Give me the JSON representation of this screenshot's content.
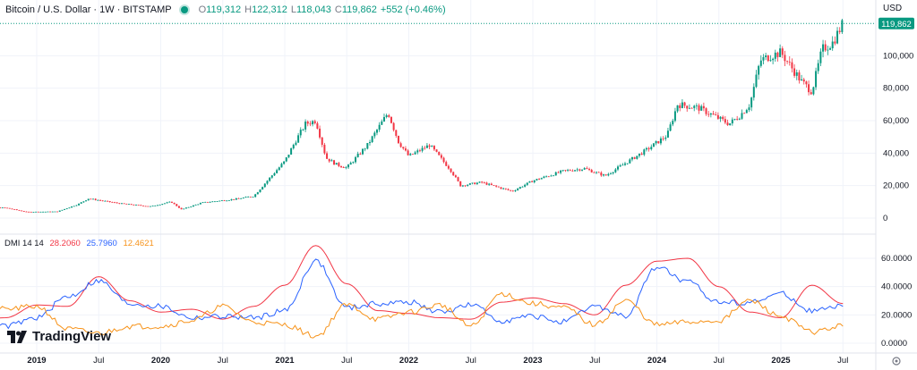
{
  "header": {
    "symbol": "Bitcoin / U.S. Dollar · 1W · BITSTAMP",
    "o_label": "O",
    "o": "119,312",
    "h_label": "H",
    "h": "122,312",
    "l_label": "L",
    "l": "118,043",
    "c_label": "C",
    "c": "119,862",
    "change": "+552 (+0.46%)"
  },
  "currency": "USD",
  "last_price_label": "119,862",
  "dmi_legend": {
    "name": "DMI 14 14",
    "di_plus": "28.2060",
    "di_minus": "25.7960",
    "adx": "12.4621"
  },
  "brand": "TradingView",
  "colors": {
    "up": "#089981",
    "down": "#f23645",
    "di_plus": "#f23645",
    "di_minus": "#2962ff",
    "adx": "#f7931a",
    "grid": "#f0f3fa",
    "axis_text": "#131722"
  },
  "chart_data": [
    {
      "type": "candlestick",
      "title": "Bitcoin / U.S. Dollar · 1W · BITSTAMP",
      "x_axis": [
        "2019",
        "Jul",
        "2020",
        "Jul",
        "2021",
        "Jul",
        "2022",
        "Jul",
        "2023",
        "Jul",
        "2024",
        "Jul",
        "2025",
        "Jul"
      ],
      "y_ticks": [
        "0",
        "20,000",
        "40,000",
        "60,000",
        "80,000",
        "100,000"
      ],
      "ylim": [
        0,
        125000
      ],
      "series_close": [
        [
          "2018-06",
          6500
        ],
        [
          "2018-10",
          6300
        ],
        [
          "2018-12",
          3800
        ],
        [
          "2019-03",
          4000
        ],
        [
          "2019-05",
          8500
        ],
        [
          "2019-06",
          12000
        ],
        [
          "2019-09",
          9000
        ],
        [
          "2019-12",
          7200
        ],
        [
          "2020-02",
          10000
        ],
        [
          "2020-03",
          5300
        ],
        [
          "2020-05",
          9500
        ],
        [
          "2020-08",
          11500
        ],
        [
          "2020-10",
          13500
        ],
        [
          "2020-12",
          28000
        ],
        [
          "2021-01",
          35000
        ],
        [
          "2021-02",
          47000
        ],
        [
          "2021-03",
          58000
        ],
        [
          "2021-04",
          60000
        ],
        [
          "2021-05",
          37000
        ],
        [
          "2021-06",
          33000
        ],
        [
          "2021-07",
          31000
        ],
        [
          "2021-09",
          45000
        ],
        [
          "2021-11",
          65000
        ],
        [
          "2021-12",
          47000
        ],
        [
          "2022-01",
          38000
        ],
        [
          "2022-03",
          45000
        ],
        [
          "2022-05",
          30000
        ],
        [
          "2022-06",
          20000
        ],
        [
          "2022-08",
          22000
        ],
        [
          "2022-11",
          16500
        ],
        [
          "2023-01",
          23000
        ],
        [
          "2023-04",
          29000
        ],
        [
          "2023-06",
          30500
        ],
        [
          "2023-08",
          26000
        ],
        [
          "2023-10",
          34000
        ],
        [
          "2023-12",
          42000
        ],
        [
          "2024-02",
          51000
        ],
        [
          "2024-03",
          70000
        ],
        [
          "2024-05",
          68000
        ],
        [
          "2024-08",
          58000
        ],
        [
          "2024-09",
          63000
        ],
        [
          "2024-10",
          70000
        ],
        [
          "2024-11",
          97000
        ],
        [
          "2024-12",
          100000
        ],
        [
          "2025-01",
          102000
        ],
        [
          "2025-03",
          84000
        ],
        [
          "2025-04",
          78000
        ],
        [
          "2025-05",
          104000
        ],
        [
          "2025-06",
          108000
        ],
        [
          "2025-07",
          119862
        ]
      ]
    },
    {
      "type": "line",
      "title": "DMI 14 14",
      "y_ticks": [
        "0.0000",
        "20.0000",
        "40.0000",
        "60.0000"
      ],
      "ylim": [
        0,
        72
      ],
      "x": [
        "2018-06",
        "2018-10",
        "2019-01",
        "2019-04",
        "2019-07",
        "2019-10",
        "2020-01",
        "2020-04",
        "2020-07",
        "2020-10",
        "2021-01",
        "2021-04",
        "2021-07",
        "2021-10",
        "2022-01",
        "2022-04",
        "2022-07",
        "2022-10",
        "2023-01",
        "2023-04",
        "2023-07",
        "2023-10",
        "2024-01",
        "2024-04",
        "2024-07",
        "2024-10",
        "2025-01",
        "2025-04",
        "2025-07"
      ],
      "series": [
        {
          "name": "+DI",
          "values": [
            14,
            18,
            27,
            26,
            47,
            30,
            22,
            24,
            17,
            26,
            41,
            69,
            42,
            23,
            21,
            18,
            17,
            29,
            32,
            28,
            20,
            41,
            58,
            60,
            40,
            22,
            18,
            41,
            28
          ]
        },
        {
          "name": "-DI",
          "values": [
            12,
            12,
            18,
            33,
            44,
            28,
            26,
            18,
            19,
            18,
            23,
            58,
            25,
            28,
            29,
            22,
            27,
            16,
            19,
            15,
            26,
            19,
            54,
            43,
            29,
            29,
            35,
            23,
            26
          ]
        },
        {
          "name": "ADX",
          "values": [
            22,
            24,
            26,
            10,
            7,
            12,
            12,
            16,
            26,
            15,
            13,
            5,
            27,
            17,
            22,
            27,
            12,
            35,
            28,
            25,
            13,
            30,
            13,
            15,
            16,
            30,
            19,
            8,
            12
          ]
        }
      ]
    }
  ]
}
